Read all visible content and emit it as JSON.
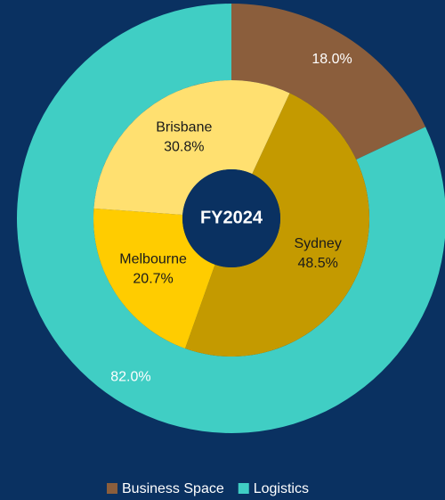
{
  "chart_data": {
    "type": "donut",
    "center_label": "FY2024",
    "rings": [
      {
        "categories": [
          "Business Space",
          "Logistics"
        ],
        "values": [
          18.0,
          82.0
        ],
        "value_labels": [
          "18.0%",
          "82.0%"
        ],
        "colors": [
          "#8b5e3c",
          "#40cec4"
        ]
      },
      {
        "categories": [
          "Sydney",
          "Melbourne",
          "Brisbane"
        ],
        "values": [
          48.5,
          20.7,
          30.8
        ],
        "value_labels": [
          "48.5%",
          "20.7%",
          "30.8%"
        ],
        "colors": [
          "#c49a00",
          "#ffcc00",
          "#ffe070"
        ]
      }
    ]
  }
}
